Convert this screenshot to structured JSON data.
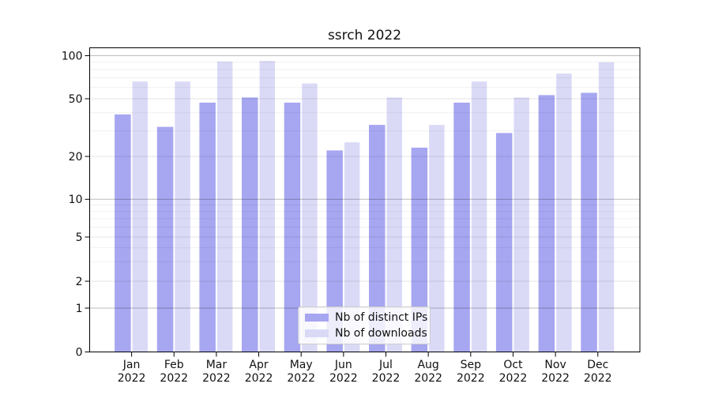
{
  "chart_data": {
    "type": "bar",
    "title": "ssrch 2022",
    "categories": [
      "Jan 2022",
      "Feb 2022",
      "Mar 2022",
      "Apr 2022",
      "May 2022",
      "Jun 2022",
      "Jul 2022",
      "Aug 2022",
      "Sep 2022",
      "Oct 2022",
      "Nov 2022",
      "Dec 2022"
    ],
    "series": [
      {
        "name": "Nb of distinct IPs",
        "color": "#a6a6f1",
        "values": [
          39,
          32,
          47,
          51,
          47,
          22,
          33,
          23,
          47,
          29,
          53,
          55
        ]
      },
      {
        "name": "Nb of downloads",
        "color": "#dadaf7",
        "values": [
          66,
          66,
          91,
          92,
          64,
          25,
          51,
          33,
          66,
          51,
          75,
          90
        ]
      }
    ],
    "xlabel": "",
    "ylabel": "",
    "yscale": "symlog",
    "yticks": [
      0,
      1,
      2,
      5,
      10,
      20,
      50,
      100
    ],
    "ylim": [
      0,
      114
    ],
    "grid": "horizontal major + log-minor",
    "legend_position": "lower center"
  }
}
